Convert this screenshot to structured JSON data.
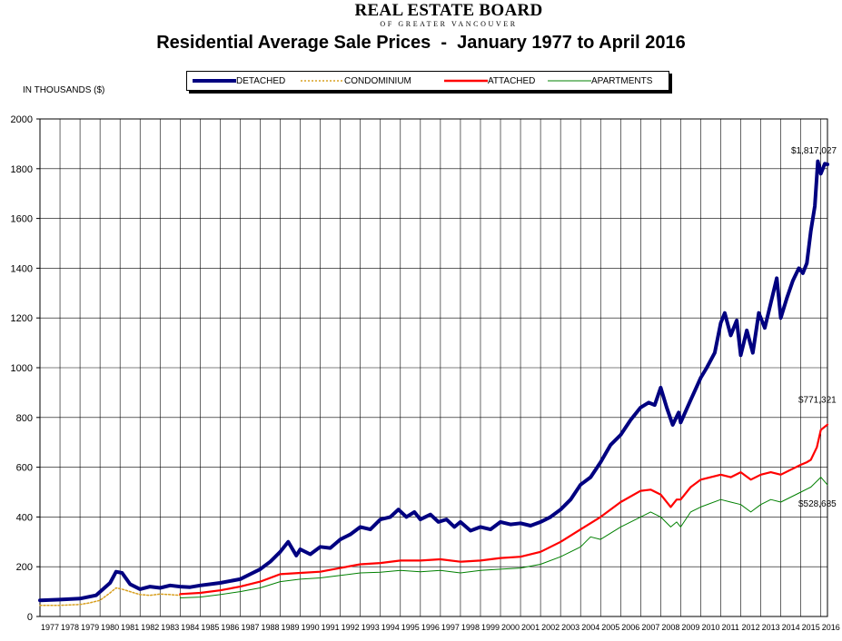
{
  "logo": {
    "main": "REAL ESTATE BOARD",
    "sub": "OF GREATER VANCOUVER"
  },
  "chart_data": {
    "type": "line",
    "title": "Residential Average Sale Prices  -  January 1977 to April 2016",
    "ylabel": "IN THOUSANDS ($)",
    "xlabel": "",
    "ylim": [
      0,
      2000
    ],
    "yticks": [
      0,
      200,
      400,
      600,
      800,
      1000,
      1200,
      1400,
      1600,
      1800,
      2000
    ],
    "xlim": [
      1977,
      2016.33
    ],
    "categories": [
      "1977",
      "1978",
      "1979",
      "1980",
      "1981",
      "1982",
      "1983",
      "1984",
      "1985",
      "1986",
      "1987",
      "1988",
      "1989",
      "1990",
      "1991",
      "1992",
      "1993",
      "1994",
      "1995",
      "1996",
      "1997",
      "1998",
      "1999",
      "2000",
      "2001",
      "2002",
      "2003",
      "2004",
      "2005",
      "2006",
      "2007",
      "2008",
      "2009",
      "2010",
      "2011",
      "2012",
      "2013",
      "2014",
      "2015",
      "2016"
    ],
    "grid": true,
    "legend_position": "top",
    "series": [
      {
        "name": "DETACHED",
        "color": "#000080",
        "style": "solid-thick",
        "x": [
          1977,
          1978,
          1979,
          1979.8,
          1980.5,
          1980.8,
          1981.1,
          1981.5,
          1982,
          1982.5,
          1983,
          1983.5,
          1984,
          1984.5,
          1985,
          1986,
          1987,
          1988,
          1988.5,
          1989,
          1989.4,
          1989.8,
          1990,
          1990.5,
          1991,
          1991.5,
          1992,
          1992.5,
          1993,
          1993.5,
          1994,
          1994.5,
          1994.9,
          1995.3,
          1995.7,
          1996,
          1996.5,
          1996.9,
          1997.3,
          1997.7,
          1998,
          1998.5,
          1999,
          1999.5,
          2000,
          2000.5,
          2001,
          2001.5,
          2002,
          2002.5,
          2003,
          2003.5,
          2004,
          2004.5,
          2005,
          2005.5,
          2006,
          2006.5,
          2007,
          2007.4,
          2007.7,
          2008,
          2008.3,
          2008.6,
          2008.9,
          2009,
          2009.5,
          2010,
          2010.3,
          2010.7,
          2011,
          2011.2,
          2011.5,
          2011.8,
          2012,
          2012.3,
          2012.6,
          2012.9,
          2013.2,
          2013.5,
          2013.8,
          2014,
          2014.3,
          2014.6,
          2014.9,
          2015.1,
          2015.3,
          2015.5,
          2015.7,
          2015.85,
          2016,
          2016.2,
          2016.33
        ],
        "values": [
          65,
          68,
          72,
          85,
          135,
          180,
          175,
          130,
          110,
          120,
          115,
          125,
          120,
          118,
          125,
          135,
          150,
          190,
          220,
          260,
          300,
          245,
          270,
          250,
          280,
          275,
          310,
          330,
          360,
          350,
          390,
          400,
          430,
          400,
          420,
          390,
          410,
          380,
          390,
          360,
          380,
          345,
          360,
          350,
          380,
          370,
          375,
          365,
          380,
          400,
          430,
          470,
          530,
          560,
          620,
          690,
          730,
          790,
          840,
          860,
          850,
          920,
          840,
          770,
          820,
          780,
          870,
          960,
          1000,
          1060,
          1180,
          1220,
          1130,
          1190,
          1050,
          1150,
          1060,
          1220,
          1160,
          1260,
          1360,
          1200,
          1280,
          1350,
          1400,
          1380,
          1420,
          1550,
          1650,
          1830,
          1780,
          1820,
          1817.027
        ]
      },
      {
        "name": "CONDOMINIUM",
        "color": "#d8a020",
        "style": "dotted",
        "x": [
          1977,
          1978,
          1979,
          1979.5,
          1980,
          1980.5,
          1980.8,
          1981.1,
          1981.5,
          1982,
          1982.5,
          1983,
          1983.5,
          1984
        ],
        "values": [
          45,
          45,
          48,
          55,
          65,
          95,
          115,
          110,
          100,
          88,
          85,
          90,
          88,
          85
        ]
      },
      {
        "name": "ATTACHED",
        "color": "#ff0000",
        "style": "solid",
        "x": [
          1984,
          1985,
          1986,
          1987,
          1988,
          1989,
          1990,
          1991,
          1992,
          1993,
          1994,
          1995,
          1996,
          1997,
          1998,
          1999,
          2000,
          2001,
          2002,
          2003,
          2004,
          2005,
          2006,
          2007,
          2007.5,
          2008,
          2008.5,
          2008.8,
          2009,
          2009.5,
          2010,
          2011,
          2011.5,
          2012,
          2012.5,
          2013,
          2013.5,
          2014,
          2014.5,
          2015,
          2015.3,
          2015.5,
          2015.8,
          2016,
          2016.33
        ],
        "values": [
          90,
          95,
          105,
          120,
          140,
          170,
          175,
          180,
          195,
          210,
          215,
          225,
          225,
          230,
          220,
          225,
          235,
          240,
          260,
          300,
          350,
          400,
          460,
          505,
          510,
          490,
          440,
          470,
          470,
          520,
          550,
          570,
          560,
          580,
          550,
          570,
          580,
          570,
          590,
          610,
          620,
          630,
          680,
          750,
          771.321
        ]
      },
      {
        "name": "APARTMENTS",
        "color": "#008000",
        "style": "solid-thin",
        "x": [
          1984,
          1985,
          1986,
          1987,
          1988,
          1989,
          1990,
          1991,
          1992,
          1993,
          1994,
          1995,
          1996,
          1997,
          1998,
          1999,
          2000,
          2001,
          2002,
          2003,
          2004,
          2004.5,
          2005,
          2006,
          2007,
          2007.5,
          2008,
          2008.5,
          2008.8,
          2009,
          2009.5,
          2010,
          2011,
          2011.5,
          2012,
          2012.5,
          2013,
          2013.5,
          2014,
          2014.5,
          2015,
          2015.5,
          2016,
          2016.33
        ],
        "values": [
          75,
          78,
          88,
          100,
          115,
          140,
          150,
          155,
          165,
          175,
          178,
          185,
          180,
          185,
          175,
          185,
          190,
          195,
          210,
          240,
          280,
          320,
          310,
          360,
          400,
          420,
          400,
          360,
          380,
          360,
          420,
          440,
          470,
          460,
          450,
          420,
          450,
          470,
          460,
          480,
          500,
          520,
          560,
          528.685
        ]
      }
    ],
    "annotations": [
      {
        "text": "$1,817,027",
        "series": "DETACHED"
      },
      {
        "text": "$771,321",
        "series": "ATTACHED"
      },
      {
        "text": "$528,685",
        "series": "APARTMENTS"
      }
    ]
  }
}
